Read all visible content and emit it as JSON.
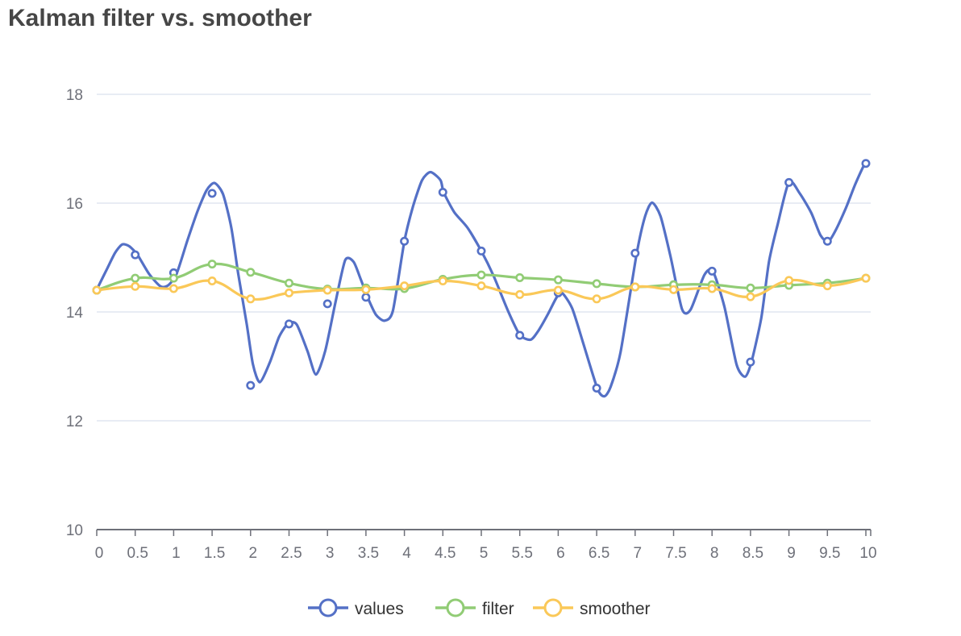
{
  "chart_data": {
    "type": "line",
    "title": "Kalman filter vs. smoother",
    "xlabel": "",
    "ylabel": "",
    "xlim": [
      0,
      10
    ],
    "ylim": [
      10,
      18
    ],
    "grid": true,
    "legend_position": "bottom-center",
    "x_ticks": [
      "0",
      "0.5",
      "1",
      "1.5",
      "2",
      "2.5",
      "3",
      "3.5",
      "4",
      "4.5",
      "5",
      "5.5",
      "6",
      "6.5",
      "7",
      "7.5",
      "8",
      "8.5",
      "9",
      "9.5",
      "10"
    ],
    "y_ticks": [
      "10",
      "12",
      "14",
      "16",
      "18"
    ],
    "x_tick_values": [
      0,
      0.5,
      1,
      1.5,
      2,
      2.5,
      3,
      3.5,
      4,
      4.5,
      5,
      5.5,
      6,
      6.5,
      7,
      7.5,
      8,
      8.5,
      9,
      9.5,
      10
    ],
    "y_tick_values": [
      10,
      12,
      14,
      16,
      18
    ],
    "series": [
      {
        "name": "values",
        "color": "#5470c6",
        "smooth": true,
        "marker_x": [
          0,
          0.5,
          1,
          1.5,
          2,
          2.5,
          3,
          3.5,
          4,
          4.5,
          5,
          5.5,
          6,
          6.5,
          7,
          7.5,
          8,
          8.5,
          9,
          9.5,
          10
        ],
        "marker_y": [
          14.4,
          15.05,
          14.72,
          16.18,
          12.65,
          13.78,
          14.15,
          14.27,
          15.3,
          16.2,
          15.12,
          13.57,
          14.35,
          12.6,
          15.08,
          14.5,
          14.75,
          13.08,
          16.38,
          15.3,
          16.73
        ],
        "line_x": [
          0,
          0.14,
          0.24,
          0.33,
          0.42,
          0.53,
          0.68,
          0.83,
          0.93,
          1.04,
          1.18,
          1.31,
          1.43,
          1.53,
          1.64,
          1.75,
          1.84,
          1.95,
          2.03,
          2.12,
          2.25,
          2.37,
          2.49,
          2.6,
          2.74,
          2.85,
          2.97,
          3.1,
          3.23,
          3.34,
          3.43,
          3.53,
          3.63,
          3.74,
          3.85,
          4.0,
          4.11,
          4.23,
          4.34,
          4.47,
          4.51,
          4.65,
          4.82,
          5.0,
          5.16,
          5.35,
          5.5,
          5.64,
          5.74,
          5.87,
          5.98,
          6.05,
          6.18,
          6.32,
          6.51,
          6.6,
          6.68,
          6.81,
          7.02,
          7.13,
          7.22,
          7.33,
          7.46,
          7.61,
          7.72,
          7.9,
          8.01,
          8.16,
          8.32,
          8.43,
          8.51,
          8.64,
          8.74,
          8.85,
          9.0,
          9.14,
          9.29,
          9.41,
          9.51,
          9.61,
          9.74,
          9.86,
          9.98,
          10.0
        ],
        "line_y": [
          14.41,
          14.81,
          15.09,
          15.24,
          15.21,
          15.05,
          14.7,
          14.47,
          14.49,
          14.71,
          15.32,
          15.85,
          16.24,
          16.37,
          16.17,
          15.55,
          14.7,
          13.78,
          13.04,
          12.71,
          13.07,
          13.54,
          13.79,
          13.77,
          13.28,
          12.85,
          13.28,
          14.15,
          14.95,
          14.92,
          14.61,
          14.24,
          13.95,
          13.84,
          14.02,
          15.3,
          15.93,
          16.42,
          16.57,
          16.42,
          16.2,
          15.83,
          15.55,
          15.12,
          14.66,
          14.01,
          13.58,
          13.49,
          13.65,
          13.97,
          14.27,
          14.35,
          14.07,
          13.45,
          12.59,
          12.45,
          12.62,
          13.26,
          15.07,
          15.76,
          16.01,
          15.76,
          15.02,
          14.05,
          14.04,
          14.68,
          14.75,
          14.1,
          13.03,
          12.81,
          13.07,
          13.89,
          14.92,
          15.59,
          16.39,
          16.18,
          15.82,
          15.41,
          15.29,
          15.51,
          15.91,
          16.34,
          16.71,
          16.73
        ]
      },
      {
        "name": "filter",
        "color": "#91cc75",
        "smooth": true,
        "x": [
          0,
          0.5,
          1,
          1.5,
          2,
          2.5,
          3,
          3.5,
          4,
          4.5,
          5,
          5.5,
          6,
          6.5,
          7,
          7.5,
          8,
          8.5,
          9,
          9.5,
          10
        ],
        "y": [
          14.4,
          14.62,
          14.62,
          14.88,
          14.73,
          14.53,
          14.42,
          14.44,
          14.43,
          14.6,
          14.68,
          14.63,
          14.59,
          14.52,
          14.46,
          14.5,
          14.5,
          14.44,
          14.49,
          14.53,
          14.62
        ]
      },
      {
        "name": "smoother",
        "color": "#fac858",
        "smooth": true,
        "x": [
          0,
          0.5,
          1,
          1.5,
          2,
          2.5,
          3,
          3.5,
          4,
          4.5,
          5,
          5.5,
          6,
          6.5,
          7,
          7.5,
          8,
          8.5,
          9,
          9.5,
          10
        ],
        "y": [
          14.4,
          14.47,
          14.43,
          14.57,
          14.24,
          14.35,
          14.4,
          14.41,
          14.48,
          14.57,
          14.48,
          14.32,
          14.4,
          14.24,
          14.46,
          14.41,
          14.43,
          14.28,
          14.58,
          14.48,
          14.62
        ]
      }
    ]
  }
}
